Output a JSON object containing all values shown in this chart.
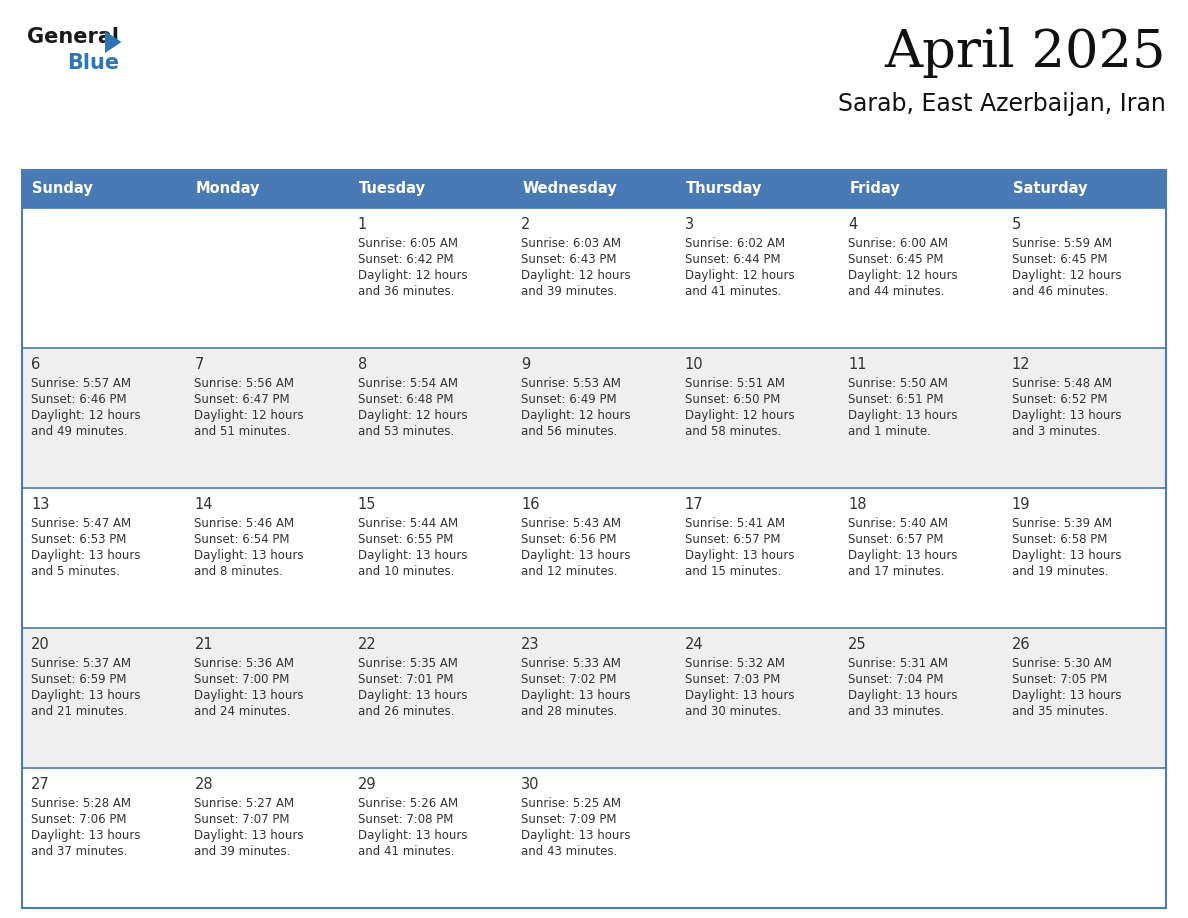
{
  "title": "April 2025",
  "subtitle": "Sarab, East Azerbaijan, Iran",
  "header_color": "#4a7ab5",
  "header_text_color": "#ffffff",
  "cell_bg_white": "#ffffff",
  "cell_bg_gray": "#efefef",
  "text_color": "#333333",
  "line_color": "#4a7ab5",
  "logo_general_color": "#1a1a1a",
  "logo_blue_color": "#2e75b6",
  "logo_triangle_color": "#2e75b6",
  "day_names": [
    "Sunday",
    "Monday",
    "Tuesday",
    "Wednesday",
    "Thursday",
    "Friday",
    "Saturday"
  ],
  "days": [
    {
      "date": 1,
      "col": 2,
      "row": 0,
      "sunrise": "6:05 AM",
      "sunset": "6:42 PM",
      "daylight_l1": "Daylight: 12 hours",
      "daylight_l2": "and 36 minutes."
    },
    {
      "date": 2,
      "col": 3,
      "row": 0,
      "sunrise": "6:03 AM",
      "sunset": "6:43 PM",
      "daylight_l1": "Daylight: 12 hours",
      "daylight_l2": "and 39 minutes."
    },
    {
      "date": 3,
      "col": 4,
      "row": 0,
      "sunrise": "6:02 AM",
      "sunset": "6:44 PM",
      "daylight_l1": "Daylight: 12 hours",
      "daylight_l2": "and 41 minutes."
    },
    {
      "date": 4,
      "col": 5,
      "row": 0,
      "sunrise": "6:00 AM",
      "sunset": "6:45 PM",
      "daylight_l1": "Daylight: 12 hours",
      "daylight_l2": "and 44 minutes."
    },
    {
      "date": 5,
      "col": 6,
      "row": 0,
      "sunrise": "5:59 AM",
      "sunset": "6:45 PM",
      "daylight_l1": "Daylight: 12 hours",
      "daylight_l2": "and 46 minutes."
    },
    {
      "date": 6,
      "col": 0,
      "row": 1,
      "sunrise": "5:57 AM",
      "sunset": "6:46 PM",
      "daylight_l1": "Daylight: 12 hours",
      "daylight_l2": "and 49 minutes."
    },
    {
      "date": 7,
      "col": 1,
      "row": 1,
      "sunrise": "5:56 AM",
      "sunset": "6:47 PM",
      "daylight_l1": "Daylight: 12 hours",
      "daylight_l2": "and 51 minutes."
    },
    {
      "date": 8,
      "col": 2,
      "row": 1,
      "sunrise": "5:54 AM",
      "sunset": "6:48 PM",
      "daylight_l1": "Daylight: 12 hours",
      "daylight_l2": "and 53 minutes."
    },
    {
      "date": 9,
      "col": 3,
      "row": 1,
      "sunrise": "5:53 AM",
      "sunset": "6:49 PM",
      "daylight_l1": "Daylight: 12 hours",
      "daylight_l2": "and 56 minutes."
    },
    {
      "date": 10,
      "col": 4,
      "row": 1,
      "sunrise": "5:51 AM",
      "sunset": "6:50 PM",
      "daylight_l1": "Daylight: 12 hours",
      "daylight_l2": "and 58 minutes."
    },
    {
      "date": 11,
      "col": 5,
      "row": 1,
      "sunrise": "5:50 AM",
      "sunset": "6:51 PM",
      "daylight_l1": "Daylight: 13 hours",
      "daylight_l2": "and 1 minute."
    },
    {
      "date": 12,
      "col": 6,
      "row": 1,
      "sunrise": "5:48 AM",
      "sunset": "6:52 PM",
      "daylight_l1": "Daylight: 13 hours",
      "daylight_l2": "and 3 minutes."
    },
    {
      "date": 13,
      "col": 0,
      "row": 2,
      "sunrise": "5:47 AM",
      "sunset": "6:53 PM",
      "daylight_l1": "Daylight: 13 hours",
      "daylight_l2": "and 5 minutes."
    },
    {
      "date": 14,
      "col": 1,
      "row": 2,
      "sunrise": "5:46 AM",
      "sunset": "6:54 PM",
      "daylight_l1": "Daylight: 13 hours",
      "daylight_l2": "and 8 minutes."
    },
    {
      "date": 15,
      "col": 2,
      "row": 2,
      "sunrise": "5:44 AM",
      "sunset": "6:55 PM",
      "daylight_l1": "Daylight: 13 hours",
      "daylight_l2": "and 10 minutes."
    },
    {
      "date": 16,
      "col": 3,
      "row": 2,
      "sunrise": "5:43 AM",
      "sunset": "6:56 PM",
      "daylight_l1": "Daylight: 13 hours",
      "daylight_l2": "and 12 minutes."
    },
    {
      "date": 17,
      "col": 4,
      "row": 2,
      "sunrise": "5:41 AM",
      "sunset": "6:57 PM",
      "daylight_l1": "Daylight: 13 hours",
      "daylight_l2": "and 15 minutes."
    },
    {
      "date": 18,
      "col": 5,
      "row": 2,
      "sunrise": "5:40 AM",
      "sunset": "6:57 PM",
      "daylight_l1": "Daylight: 13 hours",
      "daylight_l2": "and 17 minutes."
    },
    {
      "date": 19,
      "col": 6,
      "row": 2,
      "sunrise": "5:39 AM",
      "sunset": "6:58 PM",
      "daylight_l1": "Daylight: 13 hours",
      "daylight_l2": "and 19 minutes."
    },
    {
      "date": 20,
      "col": 0,
      "row": 3,
      "sunrise": "5:37 AM",
      "sunset": "6:59 PM",
      "daylight_l1": "Daylight: 13 hours",
      "daylight_l2": "and 21 minutes."
    },
    {
      "date": 21,
      "col": 1,
      "row": 3,
      "sunrise": "5:36 AM",
      "sunset": "7:00 PM",
      "daylight_l1": "Daylight: 13 hours",
      "daylight_l2": "and 24 minutes."
    },
    {
      "date": 22,
      "col": 2,
      "row": 3,
      "sunrise": "5:35 AM",
      "sunset": "7:01 PM",
      "daylight_l1": "Daylight: 13 hours",
      "daylight_l2": "and 26 minutes."
    },
    {
      "date": 23,
      "col": 3,
      "row": 3,
      "sunrise": "5:33 AM",
      "sunset": "7:02 PM",
      "daylight_l1": "Daylight: 13 hours",
      "daylight_l2": "and 28 minutes."
    },
    {
      "date": 24,
      "col": 4,
      "row": 3,
      "sunrise": "5:32 AM",
      "sunset": "7:03 PM",
      "daylight_l1": "Daylight: 13 hours",
      "daylight_l2": "and 30 minutes."
    },
    {
      "date": 25,
      "col": 5,
      "row": 3,
      "sunrise": "5:31 AM",
      "sunset": "7:04 PM",
      "daylight_l1": "Daylight: 13 hours",
      "daylight_l2": "and 33 minutes."
    },
    {
      "date": 26,
      "col": 6,
      "row": 3,
      "sunrise": "5:30 AM",
      "sunset": "7:05 PM",
      "daylight_l1": "Daylight: 13 hours",
      "daylight_l2": "and 35 minutes."
    },
    {
      "date": 27,
      "col": 0,
      "row": 4,
      "sunrise": "5:28 AM",
      "sunset": "7:06 PM",
      "daylight_l1": "Daylight: 13 hours",
      "daylight_l2": "and 37 minutes."
    },
    {
      "date": 28,
      "col": 1,
      "row": 4,
      "sunrise": "5:27 AM",
      "sunset": "7:07 PM",
      "daylight_l1": "Daylight: 13 hours",
      "daylight_l2": "and 39 minutes."
    },
    {
      "date": 29,
      "col": 2,
      "row": 4,
      "sunrise": "5:26 AM",
      "sunset": "7:08 PM",
      "daylight_l1": "Daylight: 13 hours",
      "daylight_l2": "and 41 minutes."
    },
    {
      "date": 30,
      "col": 3,
      "row": 4,
      "sunrise": "5:25 AM",
      "sunset": "7:09 PM",
      "daylight_l1": "Daylight: 13 hours",
      "daylight_l2": "and 43 minutes."
    }
  ]
}
